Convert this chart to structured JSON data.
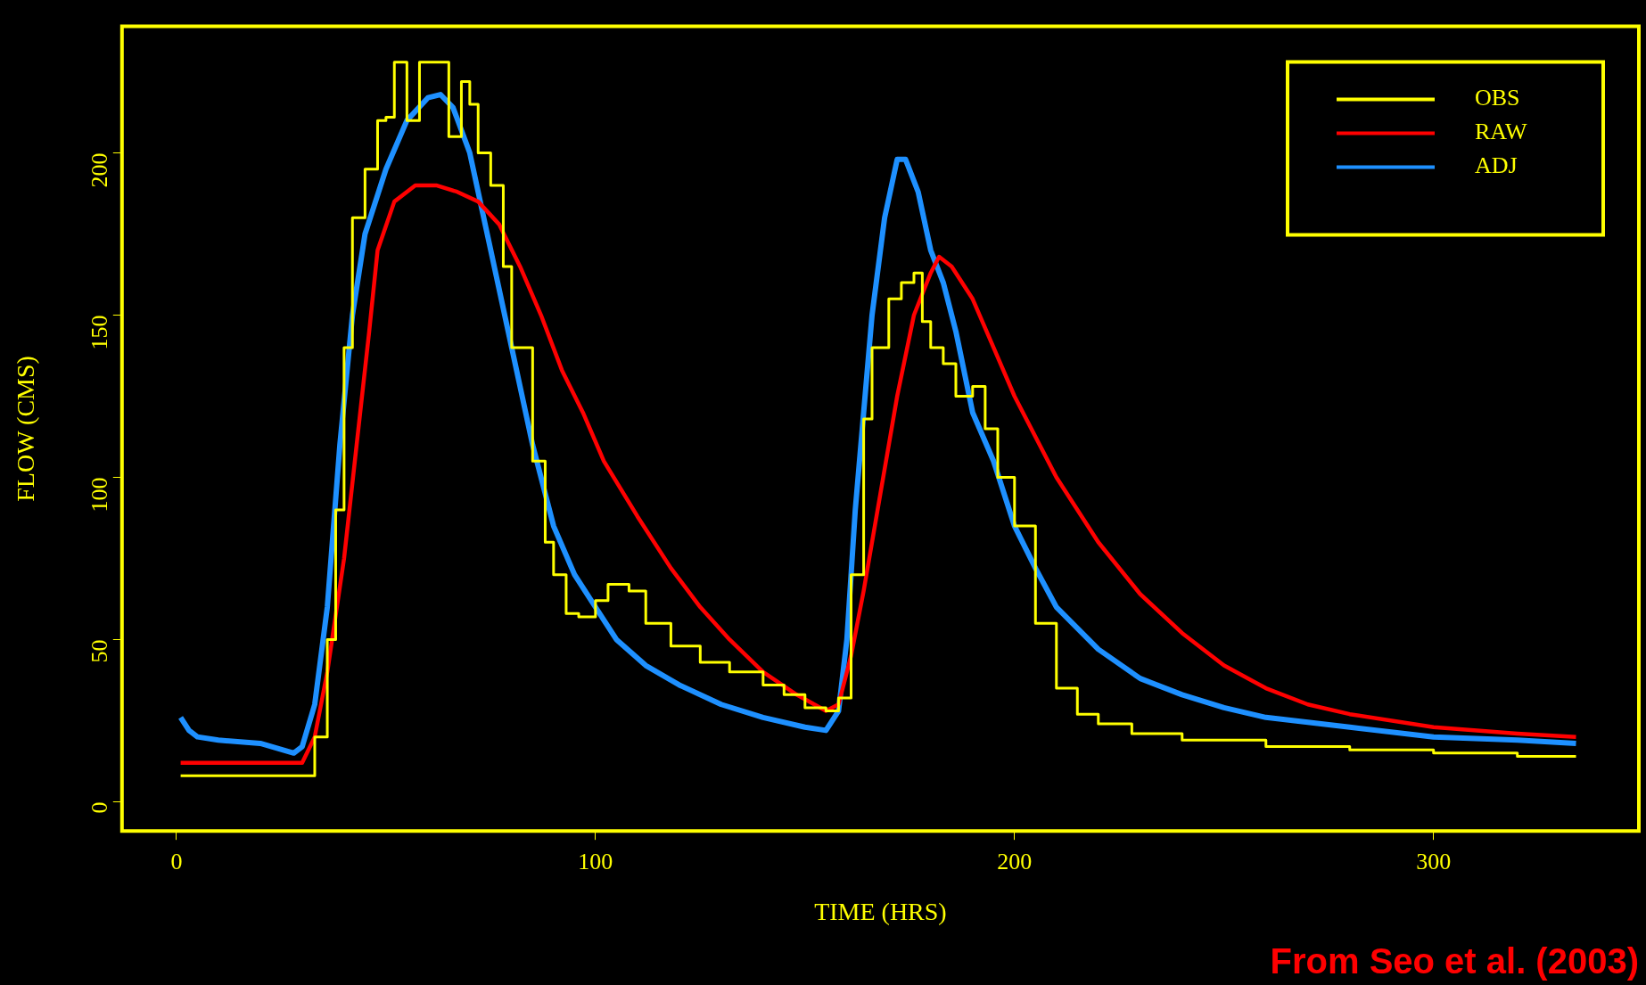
{
  "chart_data": {
    "type": "line",
    "xlabel": "TIME (HRS)",
    "ylabel": "FLOW (CMS)",
    "xlim": [
      -13,
      349
    ],
    "ylim": [
      -9,
      239
    ],
    "xticks": [
      0,
      100,
      200,
      300
    ],
    "yticks": [
      0,
      50,
      100,
      150,
      200
    ],
    "grid": false,
    "legend": "top right",
    "marker": "none",
    "line_style": "solid",
    "annotations": [
      "From Seo et al. (2003)"
    ],
    "series": [
      {
        "name": "OBS",
        "color": "#ffff00",
        "type": "step",
        "x": [
          1,
          10,
          20,
          30,
          33,
          36,
          38,
          40,
          42,
          45,
          48,
          50,
          52,
          55,
          58,
          62,
          65,
          68,
          70,
          72,
          75,
          78,
          80,
          85,
          88,
          90,
          93,
          96,
          100,
          103,
          108,
          112,
          118,
          125,
          132,
          140,
          145,
          150,
          155,
          158,
          161,
          164,
          166,
          170,
          173,
          176,
          178,
          180,
          183,
          186,
          190,
          193,
          196,
          200,
          205,
          210,
          215,
          220,
          228,
          240,
          260,
          280,
          300,
          320,
          334
        ],
        "values": [
          8,
          8,
          8,
          8,
          20,
          50,
          90,
          140,
          180,
          195,
          210,
          211,
          228,
          210,
          228,
          228,
          205,
          222,
          215,
          200,
          190,
          165,
          140,
          105,
          80,
          70,
          58,
          57,
          62,
          67,
          65,
          55,
          48,
          43,
          40,
          36,
          33,
          29,
          28,
          32,
          70,
          118,
          140,
          155,
          160,
          163,
          148,
          140,
          135,
          125,
          128,
          115,
          100,
          85,
          55,
          35,
          27,
          24,
          21,
          19,
          17,
          16,
          15,
          14,
          14
        ]
      },
      {
        "name": "RAW",
        "color": "#ff0000",
        "x": [
          1,
          28,
          30,
          33,
          36,
          40,
          43,
          46,
          48,
          52,
          57,
          62,
          67,
          72,
          77,
          82,
          87,
          92,
          97,
          102,
          110,
          118,
          125,
          132,
          140,
          148,
          155,
          158,
          161,
          164,
          168,
          172,
          176,
          180,
          182,
          185,
          190,
          195,
          200,
          210,
          220,
          230,
          240,
          250,
          260,
          270,
          280,
          300,
          320,
          334
        ],
        "values": [
          12,
          12,
          12,
          20,
          40,
          75,
          110,
          145,
          170,
          185,
          190,
          190,
          188,
          185,
          178,
          165,
          150,
          133,
          120,
          105,
          88,
          72,
          60,
          50,
          40,
          33,
          28,
          30,
          45,
          65,
          95,
          125,
          150,
          163,
          168,
          165,
          155,
          140,
          125,
          100,
          80,
          64,
          52,
          42,
          35,
          30,
          27,
          23,
          21,
          20
        ]
      },
      {
        "name": "ADJ",
        "color": "#1e90ff",
        "x": [
          1,
          3,
          5,
          10,
          20,
          28,
          30,
          33,
          36,
          39,
          42,
          45,
          50,
          55,
          60,
          63,
          66,
          70,
          75,
          80,
          85,
          90,
          95,
          100,
          105,
          112,
          120,
          130,
          140,
          150,
          155,
          158,
          160,
          162,
          164,
          166,
          169,
          172,
          174,
          177,
          180,
          183,
          186,
          190,
          195,
          200,
          205,
          210,
          220,
          230,
          240,
          250,
          260,
          280,
          300,
          320,
          334
        ],
        "values": [
          26,
          22,
          20,
          19,
          18,
          15,
          17,
          30,
          60,
          110,
          150,
          175,
          195,
          210,
          217,
          218,
          214,
          200,
          170,
          140,
          110,
          85,
          70,
          60,
          50,
          42,
          36,
          30,
          26,
          23,
          22,
          28,
          50,
          90,
          120,
          150,
          180,
          198,
          198,
          188,
          170,
          160,
          145,
          120,
          105,
          85,
          72,
          60,
          47,
          38,
          33,
          29,
          26,
          23,
          20,
          19,
          18
        ]
      }
    ]
  }
}
